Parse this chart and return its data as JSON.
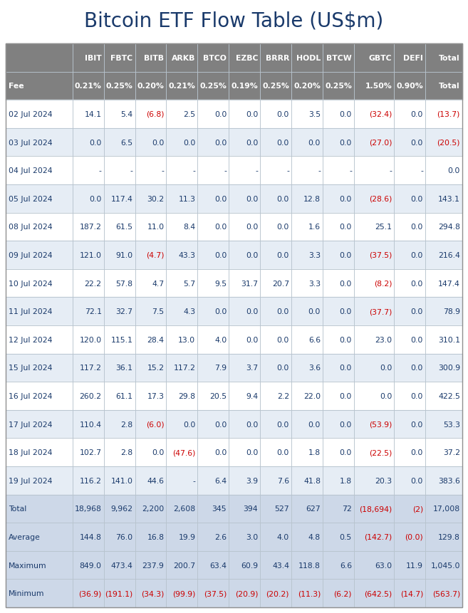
{
  "title": "Bitcoin ETF Flow Table (US$m)",
  "title_color": "#1a3a6b",
  "header_bg": "#808080",
  "header_text_color": "#ffffff",
  "fee_row_bg": "#808080",
  "fee_text_color": "#ffffff",
  "alt_row_bg_1": "#ffffff",
  "alt_row_bg_2": "#e6edf5",
  "summary_row_bg": "#cdd8e8",
  "positive_color": "#1a3a6b",
  "negative_color": "#cc0000",
  "grid_color": "#b8c4ce",
  "columns": [
    "",
    "IBIT",
    "FBTC",
    "BITB",
    "ARKB",
    "BTCO",
    "EZBC",
    "BRRR",
    "HODL",
    "BTCW",
    "GBTC",
    "DEFI",
    "Total"
  ],
  "fees": [
    "Fee",
    "0.21%",
    "0.25%",
    "0.20%",
    "0.21%",
    "0.25%",
    "0.19%",
    "0.25%",
    "0.20%",
    "0.25%",
    "1.50%",
    "0.90%",
    "Total"
  ],
  "rows": [
    [
      "02 Jul 2024",
      "14.1",
      "5.4",
      "(6.8)",
      "2.5",
      "0.0",
      "0.0",
      "0.0",
      "3.5",
      "0.0",
      "(32.4)",
      "0.0",
      "(13.7)"
    ],
    [
      "03 Jul 2024",
      "0.0",
      "6.5",
      "0.0",
      "0.0",
      "0.0",
      "0.0",
      "0.0",
      "0.0",
      "0.0",
      "(27.0)",
      "0.0",
      "(20.5)"
    ],
    [
      "04 Jul 2024",
      "-",
      "-",
      "-",
      "-",
      "-",
      "-",
      "-",
      "-",
      "-",
      "-",
      "-",
      "0.0"
    ],
    [
      "05 Jul 2024",
      "0.0",
      "117.4",
      "30.2",
      "11.3",
      "0.0",
      "0.0",
      "0.0",
      "12.8",
      "0.0",
      "(28.6)",
      "0.0",
      "143.1"
    ],
    [
      "08 Jul 2024",
      "187.2",
      "61.5",
      "11.0",
      "8.4",
      "0.0",
      "0.0",
      "0.0",
      "1.6",
      "0.0",
      "25.1",
      "0.0",
      "294.8"
    ],
    [
      "09 Jul 2024",
      "121.0",
      "91.0",
      "(4.7)",
      "43.3",
      "0.0",
      "0.0",
      "0.0",
      "3.3",
      "0.0",
      "(37.5)",
      "0.0",
      "216.4"
    ],
    [
      "10 Jul 2024",
      "22.2",
      "57.8",
      "4.7",
      "5.7",
      "9.5",
      "31.7",
      "20.7",
      "3.3",
      "0.0",
      "(8.2)",
      "0.0",
      "147.4"
    ],
    [
      "11 Jul 2024",
      "72.1",
      "32.7",
      "7.5",
      "4.3",
      "0.0",
      "0.0",
      "0.0",
      "0.0",
      "0.0",
      "(37.7)",
      "0.0",
      "78.9"
    ],
    [
      "12 Jul 2024",
      "120.0",
      "115.1",
      "28.4",
      "13.0",
      "4.0",
      "0.0",
      "0.0",
      "6.6",
      "0.0",
      "23.0",
      "0.0",
      "310.1"
    ],
    [
      "15 Jul 2024",
      "117.2",
      "36.1",
      "15.2",
      "117.2",
      "7.9",
      "3.7",
      "0.0",
      "3.6",
      "0.0",
      "0.0",
      "0.0",
      "300.9"
    ],
    [
      "16 Jul 2024",
      "260.2",
      "61.1",
      "17.3",
      "29.8",
      "20.5",
      "9.4",
      "2.2",
      "22.0",
      "0.0",
      "0.0",
      "0.0",
      "422.5"
    ],
    [
      "17 Jul 2024",
      "110.4",
      "2.8",
      "(6.0)",
      "0.0",
      "0.0",
      "0.0",
      "0.0",
      "0.0",
      "0.0",
      "(53.9)",
      "0.0",
      "53.3"
    ],
    [
      "18 Jul 2024",
      "102.7",
      "2.8",
      "0.0",
      "(47.6)",
      "0.0",
      "0.0",
      "0.0",
      "1.8",
      "0.0",
      "(22.5)",
      "0.0",
      "37.2"
    ],
    [
      "19 Jul 2024",
      "116.2",
      "141.0",
      "44.6",
      "-",
      "6.4",
      "3.9",
      "7.6",
      "41.8",
      "1.8",
      "20.3",
      "0.0",
      "383.6"
    ]
  ],
  "summary_rows": [
    [
      "Total",
      "18,968",
      "9,962",
      "2,200",
      "2,608",
      "345",
      "394",
      "527",
      "627",
      "72",
      "(18,694)",
      "(2)",
      "17,008"
    ],
    [
      "Average",
      "144.8",
      "76.0",
      "16.8",
      "19.9",
      "2.6",
      "3.0",
      "4.0",
      "4.8",
      "0.5",
      "(142.7)",
      "(0.0)",
      "129.8"
    ],
    [
      "Maximum",
      "849.0",
      "473.4",
      "237.9",
      "200.7",
      "63.4",
      "60.9",
      "43.4",
      "118.8",
      "6.6",
      "63.0",
      "11.9",
      "1,045.0"
    ],
    [
      "Minimum",
      "(36.9)",
      "(191.1)",
      "(34.3)",
      "(99.9)",
      "(37.5)",
      "(20.9)",
      "(20.2)",
      "(11.3)",
      "(6.2)",
      "(642.5)",
      "(14.7)",
      "(563.7)"
    ]
  ],
  "col_widths_rel": [
    1.75,
    0.82,
    0.82,
    0.82,
    0.82,
    0.82,
    0.82,
    0.82,
    0.82,
    0.82,
    1.05,
    0.82,
    0.97
  ],
  "fig_width": 6.57,
  "fig_height": 8.62,
  "dpi": 100
}
